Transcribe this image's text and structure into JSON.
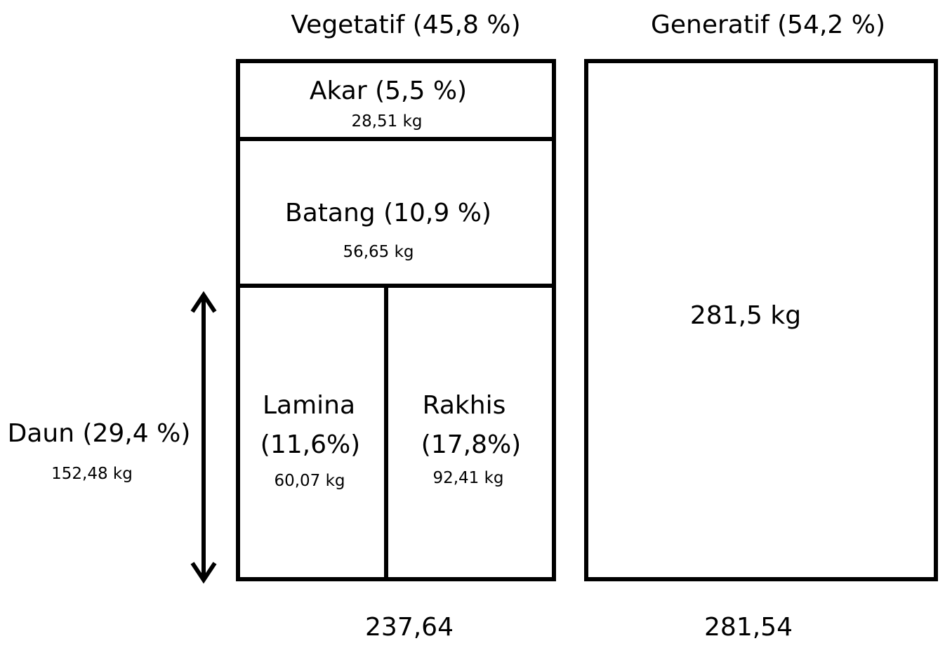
{
  "vegetatif": {
    "title": "Vegetatif (45,8 %)",
    "total": "237,64",
    "akar": {
      "label": "Akar (5,5 %)",
      "mass": "28,51 kg"
    },
    "batang": {
      "label": "Batang (10,9 %)",
      "mass": "56,65 kg"
    },
    "daun": {
      "label": "Daun (29,4 %)",
      "mass": "152,48 kg"
    },
    "lamina": {
      "label_line1": "Lamina",
      "label_line2": "(11,6%)",
      "mass": "60,07 kg"
    },
    "rakhis": {
      "label_line1": "Rakhis",
      "label_line2": "(17,8%)",
      "mass": "92,41 kg"
    }
  },
  "generatif": {
    "title": "Generatif (54,2 %)",
    "mass": "281,5 kg",
    "total": "281,54"
  }
}
